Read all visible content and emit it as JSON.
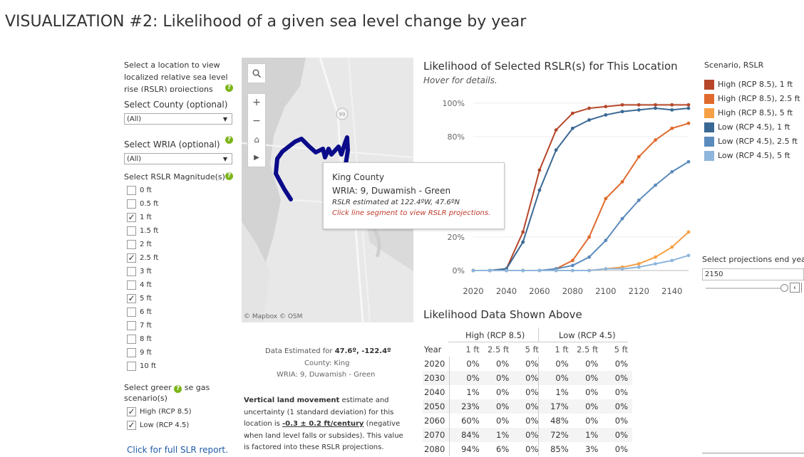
{
  "page": {
    "title": "VISUALIZATION #2: Likelihood of a given sea level change by year"
  },
  "controls": {
    "location_prompt": "Select a location to view localized relative sea level rise (RSLR) projections",
    "county_label": "Select County (optional)",
    "county_value": "(All)",
    "wria_label": "Select WRIA (optional)",
    "wria_value": "(All)",
    "rslr_label": "Select RSLR Magnitude(s)",
    "rslr_options": [
      {
        "label": "0 ft",
        "checked": false
      },
      {
        "label": "0.5 ft",
        "checked": false
      },
      {
        "label": "1 ft",
        "checked": true
      },
      {
        "label": "1.5 ft",
        "checked": false
      },
      {
        "label": "2 ft",
        "checked": false
      },
      {
        "label": "2.5 ft",
        "checked": true
      },
      {
        "label": "3 ft",
        "checked": false
      },
      {
        "label": "4 ft",
        "checked": false
      },
      {
        "label": "5 ft",
        "checked": true
      },
      {
        "label": "6 ft",
        "checked": false
      },
      {
        "label": "7 ft",
        "checked": false
      },
      {
        "label": "8 ft",
        "checked": false
      },
      {
        "label": "9 ft",
        "checked": false
      },
      {
        "label": "10 ft",
        "checked": false
      }
    ],
    "scenario_label_a": "Select greer",
    "scenario_label_b": "se gas",
    "scenario_label_c": "scenario(s)",
    "scenario_options": [
      {
        "label": "High (RCP 8.5)",
        "checked": true
      },
      {
        "label": "Low (RCP 4.5)",
        "checked": true
      }
    ],
    "report_link": "Click for full SLR report."
  },
  "map": {
    "attribution": "© Mapbox © OSM",
    "road_marker": "99",
    "tooltip": {
      "county": "King County",
      "wria": "WRIA: 9, Duwamish - Green",
      "estimate": "RSLR estimated at 122.4ºW, 47.6ºN",
      "action": "Click line segment to view RSLR projections."
    }
  },
  "info": {
    "estimated_prefix": "Data Estimated for ",
    "estimated_coords": "47.6º, -122.4º",
    "county": "County: King",
    "wria": "WRIA: 9, Duwamish - Green",
    "vlm_bold": "Vertical land movement",
    "vlm_text1": " estimate and",
    "vlm_text2": "uncertainty (1 standard deviation) for this",
    "vlm_text3a": "location is ",
    "vlm_value": "-0.3 ± 0.2 ft/century",
    "vlm_text3b": " (negative",
    "vlm_text4": "when land level falls or subsides). This value",
    "vlm_text5": "is factored into these RSLR projections."
  },
  "chart_title": "Likelihood of Selected RSLR(s) for This Location",
  "chart_hint": "Hover for details.",
  "legend": {
    "title": "Scenario, RSLR",
    "items": [
      {
        "label": "High (RCP 8.5), 1 ft",
        "color": "#b5462a"
      },
      {
        "label": "High (RCP 8.5), 2.5 ft",
        "color": "#e06a2c"
      },
      {
        "label": "High (RCP 8.5), 5 ft",
        "color": "#f5a044"
      },
      {
        "label": "Low (RCP 4.5), 1 ft",
        "color": "#3a6894"
      },
      {
        "label": "Low (RCP 4.5), 2.5 ft",
        "color": "#5b8bbd"
      },
      {
        "label": "Low (RCP 4.5), 5 ft",
        "color": "#8fb6dc"
      }
    ]
  },
  "end_year": {
    "label": "Select projections end year",
    "value": "2150"
  },
  "chart_data": {
    "type": "line",
    "x": [
      2020,
      2030,
      2040,
      2050,
      2060,
      2070,
      2080,
      2090,
      2100,
      2110,
      2120,
      2130,
      2140,
      2150
    ],
    "xticks": [
      "2020",
      "2040",
      "2060",
      "2080",
      "2100",
      "2120",
      "2140"
    ],
    "yticks": [
      "0%",
      "20%",
      "80%",
      "100%"
    ],
    "ylim": [
      0,
      100
    ],
    "series": [
      {
        "name": "High (RCP 8.5), 1 ft",
        "color": "#b5462a",
        "values": [
          0,
          0,
          1,
          23,
          60,
          84,
          94,
          97,
          98,
          99,
          99,
          99,
          99,
          99
        ]
      },
      {
        "name": "High (RCP 8.5), 2.5 ft",
        "color": "#e06a2c",
        "values": [
          0,
          0,
          0,
          0,
          0,
          1,
          6,
          20,
          43,
          53,
          68,
          78,
          85,
          88
        ]
      },
      {
        "name": "High (RCP 8.5), 5 ft",
        "color": "#f5a044",
        "values": [
          0,
          0,
          0,
          0,
          0,
          0,
          0,
          0,
          1,
          2,
          4,
          8,
          14,
          23
        ]
      },
      {
        "name": "Low (RCP 4.5), 1 ft",
        "color": "#3a6894",
        "values": [
          0,
          0,
          1,
          17,
          48,
          72,
          85,
          90,
          93,
          95,
          96,
          97,
          96,
          97
        ]
      },
      {
        "name": "Low (RCP 4.5), 2.5 ft",
        "color": "#5b8bbd",
        "values": [
          0,
          0,
          0,
          0,
          0,
          1,
          3,
          8,
          18,
          31,
          42,
          51,
          59,
          65
        ]
      },
      {
        "name": "Low (RCP 4.5), 5 ft",
        "color": "#8fb6dc",
        "values": [
          0,
          0,
          0,
          0,
          0,
          0,
          0,
          0,
          1,
          1,
          2,
          4,
          6,
          9
        ]
      }
    ]
  },
  "table": {
    "title": "Likelihood Data Shown Above",
    "group_high": "High (RCP 8.5)",
    "group_low": "Low (RCP 4.5)",
    "year_header": "Year",
    "sub_headers": [
      "1 ft",
      "2.5 ft",
      "5 ft",
      "1 ft",
      "2.5 ft",
      "5 ft"
    ],
    "rows": [
      [
        "2020",
        "0%",
        "0%",
        "0%",
        "0%",
        "0%",
        "0%"
      ],
      [
        "2030",
        "0%",
        "0%",
        "0%",
        "0%",
        "0%",
        "0%"
      ],
      [
        "2040",
        "1%",
        "0%",
        "0%",
        "1%",
        "0%",
        "0%"
      ],
      [
        "2050",
        "23%",
        "0%",
        "0%",
        "17%",
        "0%",
        "0%"
      ],
      [
        "2060",
        "60%",
        "0%",
        "0%",
        "48%",
        "0%",
        "0%"
      ],
      [
        "2070",
        "84%",
        "1%",
        "0%",
        "72%",
        "1%",
        "0%"
      ],
      [
        "2080",
        "94%",
        "6%",
        "0%",
        "85%",
        "3%",
        "0%"
      ]
    ]
  }
}
